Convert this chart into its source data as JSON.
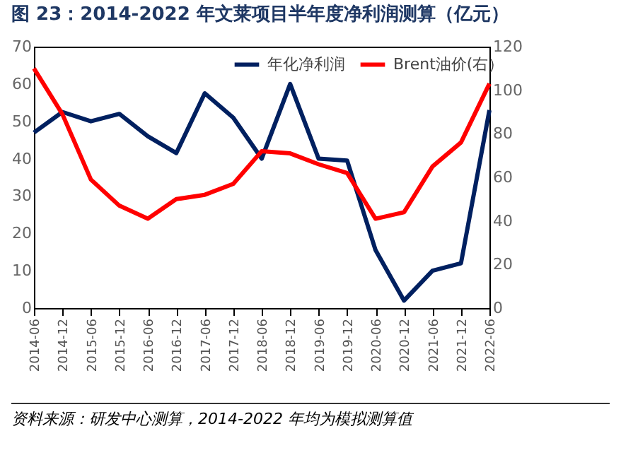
{
  "chart_data": {
    "type": "line",
    "title": "图 23：2014-2022 年文莱项目半年度净利润测算（亿元）",
    "categories": [
      "2014-06",
      "2014-12",
      "2015-06",
      "2015-12",
      "2016-06",
      "2016-12",
      "2017-06",
      "2017-12",
      "2018-06",
      "2018-12",
      "2019-06",
      "2019-12",
      "2020-06",
      "2020-12",
      "2021-06",
      "2021-12",
      "2022-06"
    ],
    "series": [
      {
        "name": "年化净利润",
        "color": "#002060",
        "values": [
          47,
          52.5,
          50,
          52,
          46,
          41.5,
          57.5,
          51,
          40,
          60,
          40,
          39.5,
          15.5,
          2,
          10,
          12,
          53
        ]
      },
      {
        "name": "Brent油价(右）",
        "color": "#ff0000",
        "axis": "y2",
        "values": [
          110,
          89,
          59,
          47,
          41,
          50,
          52,
          57,
          72,
          71,
          66,
          62,
          41,
          44,
          65,
          76,
          103
        ]
      }
    ],
    "ylim": [
      0,
      70
    ],
    "yticks": [
      0,
      10,
      20,
      30,
      40,
      50,
      60,
      70
    ],
    "y2lim": [
      0,
      120
    ],
    "y2ticks": [
      0,
      20,
      40,
      60,
      80,
      100,
      120
    ],
    "grid": false,
    "legend": "top right",
    "marker": "none",
    "line_style": "solid",
    "annotations": [
      "资料来源：研发中心测算，2014-2022 年均为模拟测算值"
    ]
  }
}
